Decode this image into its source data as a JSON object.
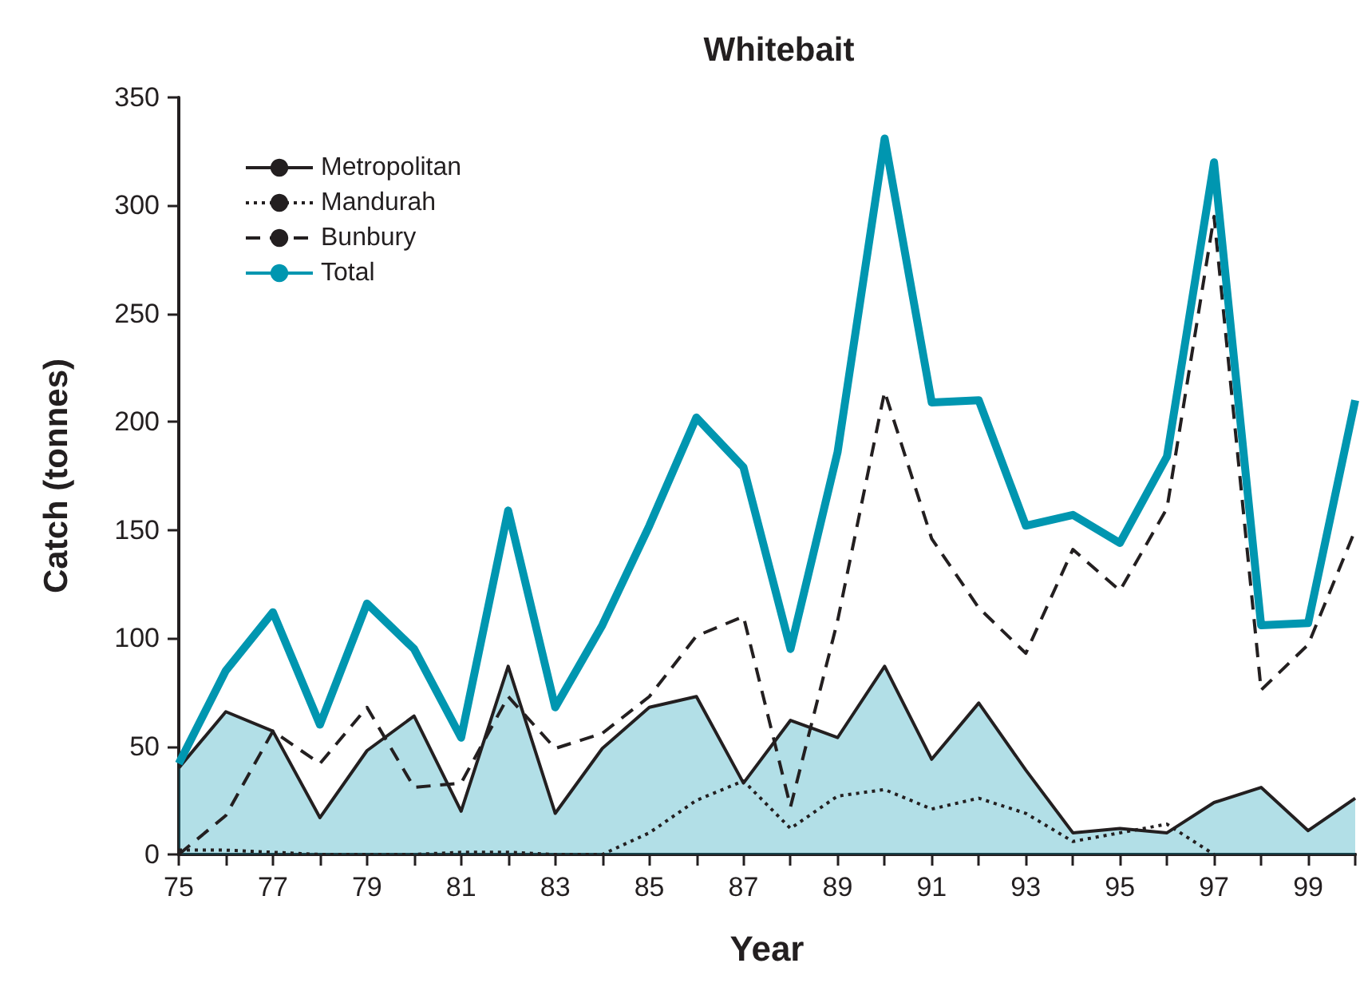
{
  "chart_data": {
    "type": "line",
    "title": "Whitebait",
    "xlabel": "Year",
    "ylabel": "Catch (tonnes)",
    "x": [
      75,
      76,
      77,
      78,
      79,
      80,
      81,
      82,
      83,
      84,
      85,
      86,
      87,
      88,
      89,
      90,
      91,
      92,
      93,
      94,
      95,
      96,
      97,
      98,
      99,
      100
    ],
    "xlim": [
      75,
      100
    ],
    "xticks": [
      75,
      {
        "value": 76,
        "label": null
      },
      77,
      {
        "value": 78,
        "label": null
      },
      79,
      {
        "value": 80,
        "label": null
      },
      81,
      {
        "value": 82,
        "label": null
      },
      83,
      {
        "value": 84,
        "label": null
      },
      85,
      {
        "value": 86,
        "label": null
      },
      87,
      {
        "value": 88,
        "label": null
      },
      89,
      {
        "value": 90,
        "label": null
      },
      91,
      {
        "value": 92,
        "label": null
      },
      93,
      {
        "value": 94,
        "label": null
      },
      95,
      {
        "value": 96,
        "label": null
      },
      97,
      {
        "value": 98,
        "label": null
      },
      99,
      {
        "value": 100,
        "label": null
      }
    ],
    "ylim": [
      0,
      350
    ],
    "yticks": [
      0,
      50,
      100,
      150,
      200,
      250,
      300,
      350
    ],
    "grid": false,
    "legend": "top left",
    "series": [
      {
        "name": "Metropolitan",
        "type": "area",
        "color": "#231f20",
        "line_style": "solid",
        "values": [
          40,
          66,
          57,
          17,
          48,
          64,
          20,
          87,
          19,
          49,
          68,
          73,
          33,
          62,
          54,
          87,
          44,
          70,
          39,
          10,
          12,
          10,
          24,
          31,
          11,
          26
        ]
      },
      {
        "name": "Mandurah",
        "color": "#231f20",
        "line_style": "dotted",
        "values": [
          2,
          2,
          1,
          0,
          0,
          0,
          1,
          1,
          0,
          0,
          10,
          25,
          34,
          12,
          27,
          30,
          21,
          26,
          19,
          6,
          10,
          14,
          0,
          null,
          null,
          null
        ]
      },
      {
        "name": "Bunbury",
        "color": "#231f20",
        "line_style": "dashed",
        "values": [
          0,
          18,
          57,
          42,
          68,
          31,
          33,
          73,
          49,
          56,
          73,
          101,
          110,
          22,
          108,
          214,
          146,
          114,
          93,
          141,
          122,
          160,
          295,
          76,
          97,
          150
        ]
      },
      {
        "name": "Total",
        "color": "#0096b0",
        "line_style": "solid",
        "values": [
          42,
          85,
          112,
          60,
          116,
          95,
          54,
          159,
          68,
          106,
          152,
          202,
          179,
          95,
          186,
          331,
          209,
          210,
          152,
          157,
          144,
          184,
          320,
          106,
          107,
          210
        ]
      }
    ]
  }
}
